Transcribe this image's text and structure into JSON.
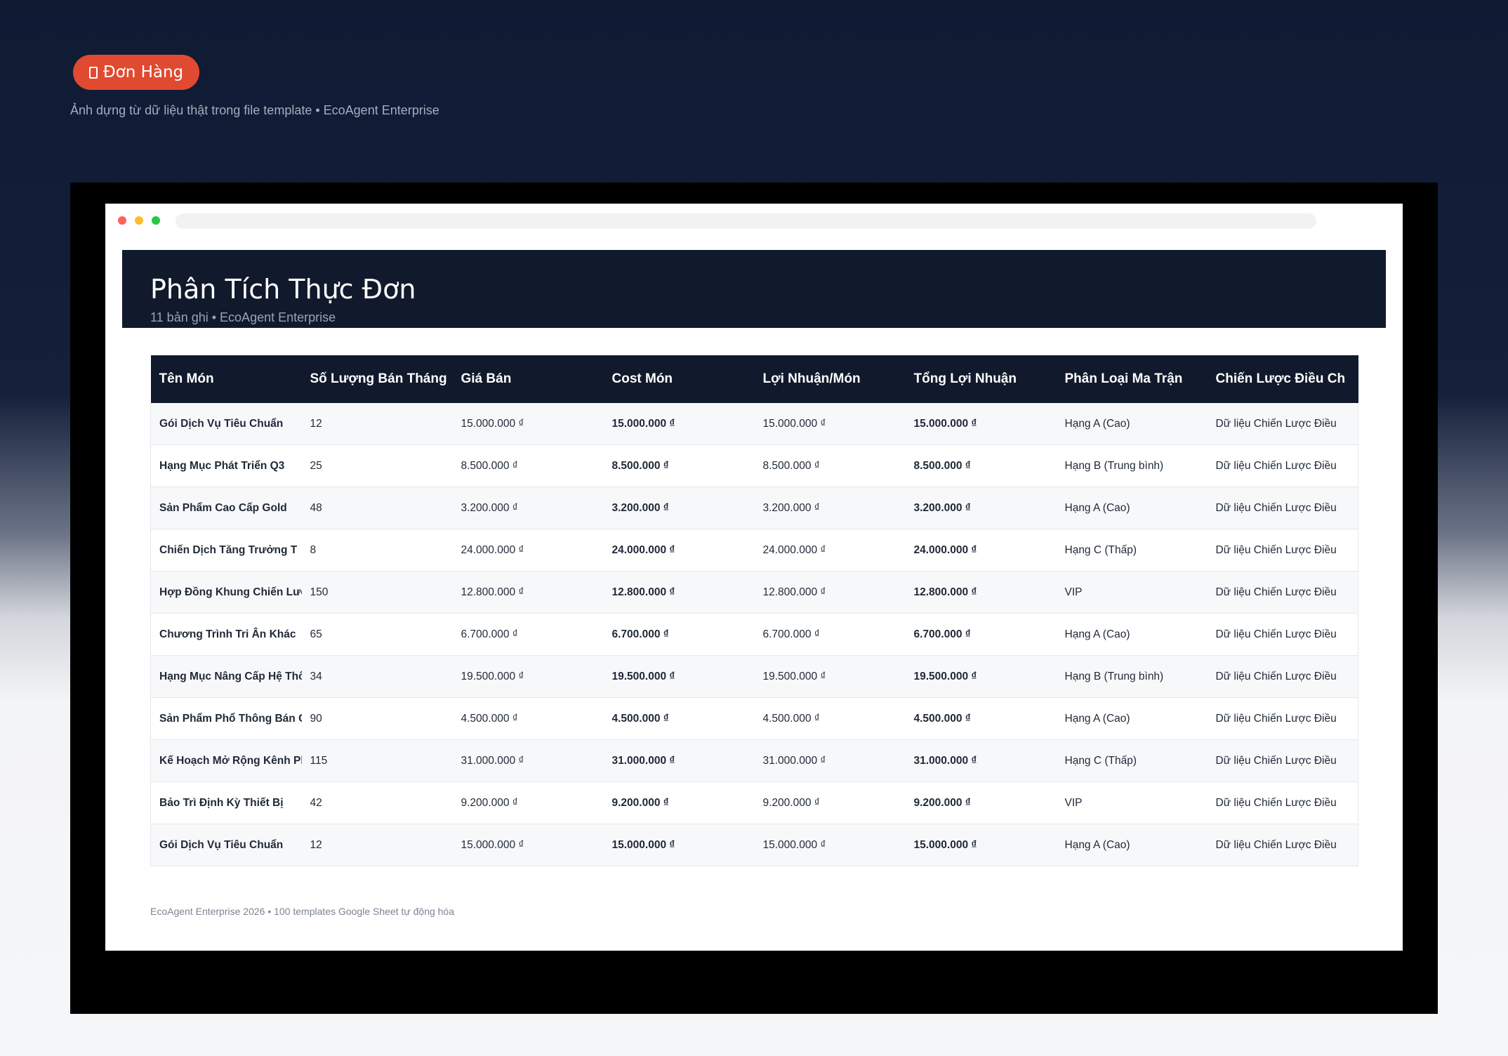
{
  "badge": {
    "label": "Đơn Hàng",
    "icon": "phone-icon"
  },
  "caption": "Ảnh dựng từ dữ liệu thật trong file template • EcoAgent Enterprise",
  "sheet": {
    "title": "Phân Tích Thực Đơn",
    "meta": "11 bản ghi • EcoAgent Enterprise"
  },
  "table": {
    "columns": [
      "Tên Món",
      "Số Lượng Bán Tháng",
      "Giá Bán",
      "Cost Món",
      "Lợi Nhuận/Món",
      "Tổng Lợi Nhuận",
      "Phân Loại Ma Trận",
      "Chiến Lược Điều Ch"
    ],
    "rows": [
      [
        "Gói Dịch Vụ Tiêu Chuẩn",
        "12",
        "15.000.000 ₫",
        "15.000.000 ₫",
        "15.000.000 ₫",
        "15.000.000 ₫",
        "Hạng A (Cao)",
        "Dữ liệu Chiến Lược Điều"
      ],
      [
        "Hạng Mục Phát Triển Q3",
        "25",
        "8.500.000 ₫",
        "8.500.000 ₫",
        "8.500.000 ₫",
        "8.500.000 ₫",
        "Hạng B (Trung bình)",
        "Dữ liệu Chiến Lược Điều"
      ],
      [
        "Sản Phẩm Cao Cấp Gold",
        "48",
        "3.200.000 ₫",
        "3.200.000 ₫",
        "3.200.000 ₫",
        "3.200.000 ₫",
        "Hạng A (Cao)",
        "Dữ liệu Chiến Lược Điều"
      ],
      [
        "Chiến Dịch Tăng Trưởng T",
        "8",
        "24.000.000 ₫",
        "24.000.000 ₫",
        "24.000.000 ₫",
        "24.000.000 ₫",
        "Hạng C (Thấp)",
        "Dữ liệu Chiến Lược Điều"
      ],
      [
        "Hợp Đồng Khung Chiến Lượ",
        "150",
        "12.800.000 ₫",
        "12.800.000 ₫",
        "12.800.000 ₫",
        "12.800.000 ₫",
        "VIP",
        "Dữ liệu Chiến Lược Điều"
      ],
      [
        "Chương Trình Tri Ân Khác",
        "65",
        "6.700.000 ₫",
        "6.700.000 ₫",
        "6.700.000 ₫",
        "6.700.000 ₫",
        "Hạng A (Cao)",
        "Dữ liệu Chiến Lược Điều"
      ],
      [
        "Hạng Mục Nâng Cấp Hệ Thố",
        "34",
        "19.500.000 ₫",
        "19.500.000 ₫",
        "19.500.000 ₫",
        "19.500.000 ₫",
        "Hạng B (Trung bình)",
        "Dữ liệu Chiến Lược Điều"
      ],
      [
        "Sản Phẩm Phổ Thông Bán C",
        "90",
        "4.500.000 ₫",
        "4.500.000 ₫",
        "4.500.000 ₫",
        "4.500.000 ₫",
        "Hạng A (Cao)",
        "Dữ liệu Chiến Lược Điều"
      ],
      [
        "Kế Hoạch Mở Rộng Kênh Ph",
        "115",
        "31.000.000 ₫",
        "31.000.000 ₫",
        "31.000.000 ₫",
        "31.000.000 ₫",
        "Hạng C (Thấp)",
        "Dữ liệu Chiến Lược Điều"
      ],
      [
        "Bảo Trì Định Kỳ Thiết Bị",
        "42",
        "9.200.000 ₫",
        "9.200.000 ₫",
        "9.200.000 ₫",
        "9.200.000 ₫",
        "VIP",
        "Dữ liệu Chiến Lược Điều"
      ],
      [
        "Gói Dịch Vụ Tiêu Chuẩn",
        "12",
        "15.000.000 ₫",
        "15.000.000 ₫",
        "15.000.000 ₫",
        "15.000.000 ₫",
        "Hạng A (Cao)",
        "Dữ liệu Chiến Lược Điều"
      ]
    ],
    "highlight_columns": [
      3,
      5
    ],
    "highlight_color": "#10b981"
  },
  "footer": "EcoAgent Enterprise 2026 • 100 templates Google Sheet tự động hóa",
  "colors": {
    "badge": "#e04a30",
    "header": "#111a2c",
    "page_top": "#0f1b33"
  }
}
